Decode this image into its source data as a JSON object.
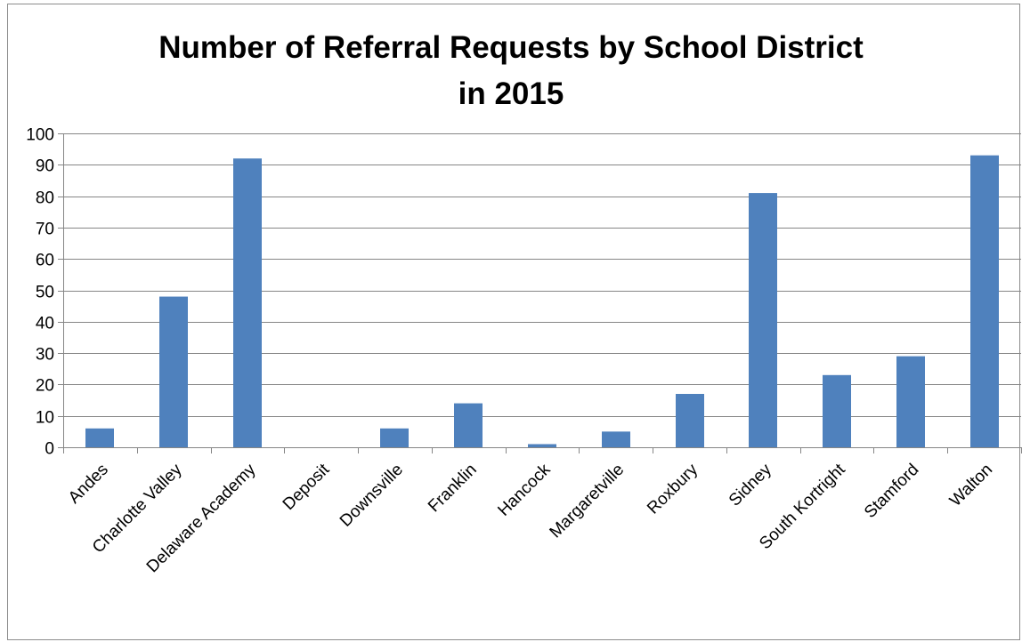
{
  "chart_data": {
    "type": "bar",
    "title_lines": [
      "Number of Referral Requests by School District",
      "in 2015"
    ],
    "categories": [
      "Andes",
      "Charlotte Valley",
      "Delaware Academy",
      "Deposit",
      "Downsville",
      "Franklin",
      "Hancock",
      "Margaretville",
      "Roxbury",
      "Sidney",
      "South Kortright",
      "Stamford",
      "Walton"
    ],
    "values": [
      6,
      48,
      92,
      0,
      6,
      14,
      1,
      5,
      17,
      81,
      23,
      29,
      93
    ],
    "yticks": [
      0,
      10,
      20,
      30,
      40,
      50,
      60,
      70,
      80,
      90,
      100
    ],
    "ylim": [
      0,
      100
    ],
    "xlabel": "",
    "ylabel": "",
    "grid": true,
    "legend": "none",
    "bar_color": "#4f81bd",
    "gridline_color": "#868686",
    "axis_color": "#868686"
  }
}
